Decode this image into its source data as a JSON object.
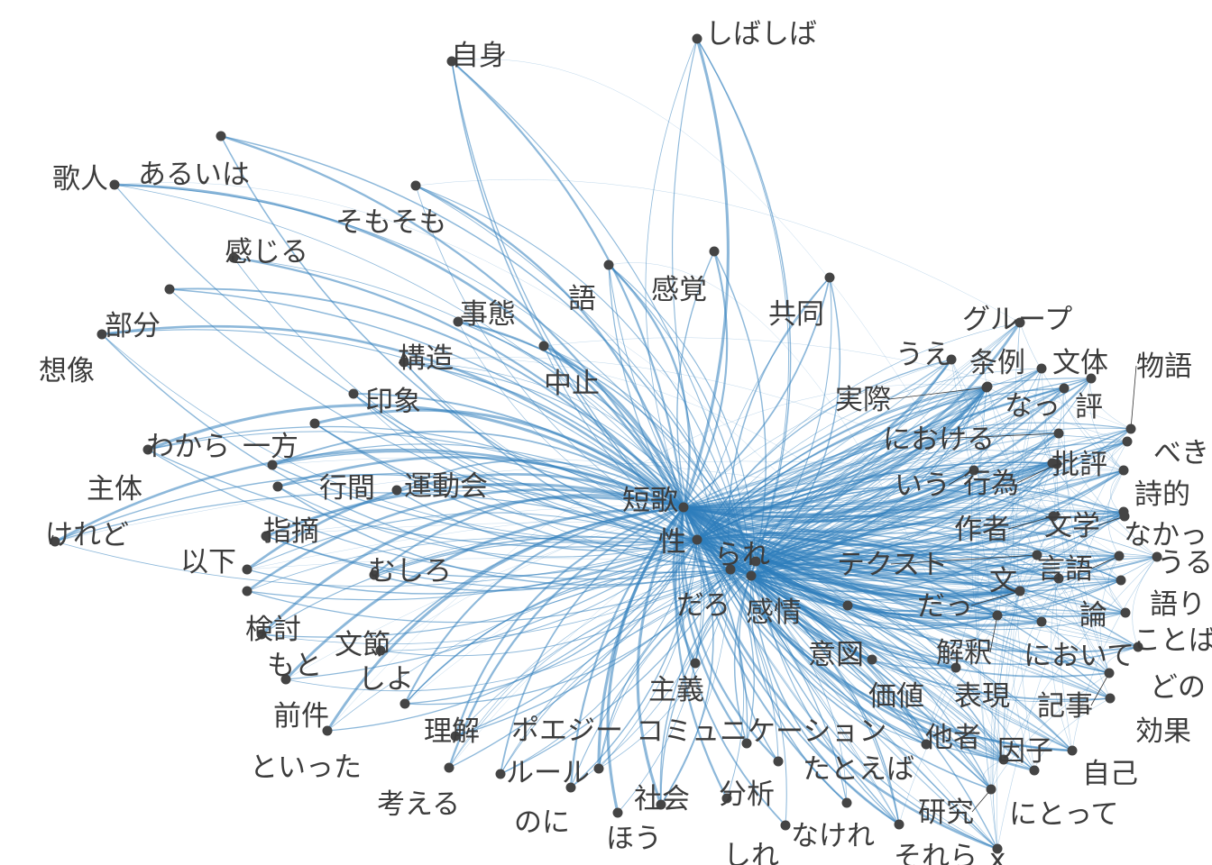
{
  "graph": {
    "edge_color": "#2f7ebc",
    "node_color": "#444444",
    "label_color": "#3c3c3c",
    "hubs": [
      "短歌",
      "性",
      "られ",
      "だろ",
      "感情"
    ],
    "nodes": [
      {
        "id": "しばしば",
        "label": "しばしば"
      },
      {
        "id": "自身",
        "label": "自身"
      },
      {
        "id": "歌人",
        "label": "歌人"
      },
      {
        "id": "あるいは",
        "label": "あるいは"
      },
      {
        "id": "そもそも",
        "label": "そもそも"
      },
      {
        "id": "感じる",
        "label": "感じる"
      },
      {
        "id": "語",
        "label": "語"
      },
      {
        "id": "感覚",
        "label": "感覚"
      },
      {
        "id": "共同",
        "label": "共同"
      },
      {
        "id": "グループ",
        "label": "グループ"
      },
      {
        "id": "部分",
        "label": "部分"
      },
      {
        "id": "事態",
        "label": "事態"
      },
      {
        "id": "想像",
        "label": "想像"
      },
      {
        "id": "構造",
        "label": "構造"
      },
      {
        "id": "中止",
        "label": "中止"
      },
      {
        "id": "うえ",
        "label": "うえ"
      },
      {
        "id": "条例",
        "label": "条例"
      },
      {
        "id": "文体",
        "label": "文体"
      },
      {
        "id": "物語",
        "label": "物語"
      },
      {
        "id": "実際",
        "label": "実際"
      },
      {
        "id": "なっ",
        "label": "なっ"
      },
      {
        "id": "評",
        "label": "評"
      },
      {
        "id": "印象",
        "label": "印象"
      },
      {
        "id": "における",
        "label": "における"
      },
      {
        "id": "べき",
        "label": "べき"
      },
      {
        "id": "わから",
        "label": "わから"
      },
      {
        "id": "一方",
        "label": "一方"
      },
      {
        "id": "批評",
        "label": "批評"
      },
      {
        "id": "主体",
        "label": "主体"
      },
      {
        "id": "行間",
        "label": "行間"
      },
      {
        "id": "運動会",
        "label": "運動会"
      },
      {
        "id": "いう",
        "label": "いう"
      },
      {
        "id": "行為",
        "label": "行為"
      },
      {
        "id": "詩的",
        "label": "詩的"
      },
      {
        "id": "短歌",
        "label": "短歌"
      },
      {
        "id": "けれど",
        "label": "けれど"
      },
      {
        "id": "指摘",
        "label": "指摘"
      },
      {
        "id": "作者",
        "label": "作者"
      },
      {
        "id": "文学",
        "label": "文学"
      },
      {
        "id": "なかっ",
        "label": "なかっ"
      },
      {
        "id": "性",
        "label": "性"
      },
      {
        "id": "られ",
        "label": "られ"
      },
      {
        "id": "以下",
        "label": "以下"
      },
      {
        "id": "テクスト",
        "label": "テクスト"
      },
      {
        "id": "うる",
        "label": "うる"
      },
      {
        "id": "むしろ",
        "label": "むしろ"
      },
      {
        "id": "言語",
        "label": "言語"
      },
      {
        "id": "文",
        "label": "文"
      },
      {
        "id": "だっ",
        "label": "だっ"
      },
      {
        "id": "語り",
        "label": "語り"
      },
      {
        "id": "だろ",
        "label": "だろ"
      },
      {
        "id": "感情",
        "label": "感情"
      },
      {
        "id": "論",
        "label": "論"
      },
      {
        "id": "検討",
        "label": "検討"
      },
      {
        "id": "ことば",
        "label": "ことば"
      },
      {
        "id": "文節",
        "label": "文節"
      },
      {
        "id": "意図",
        "label": "意図"
      },
      {
        "id": "解釈",
        "label": "解釈"
      },
      {
        "id": "において",
        "label": "において"
      },
      {
        "id": "もと",
        "label": "もと"
      },
      {
        "id": "しよ",
        "label": "しよ"
      },
      {
        "id": "どの",
        "label": "どの"
      },
      {
        "id": "主義",
        "label": "主義"
      },
      {
        "id": "価値",
        "label": "価値"
      },
      {
        "id": "表現",
        "label": "表現"
      },
      {
        "id": "前件",
        "label": "前件"
      },
      {
        "id": "記事",
        "label": "記事"
      },
      {
        "id": "理解",
        "label": "理解"
      },
      {
        "id": "ポエジー",
        "label": "ポエジー"
      },
      {
        "id": "コミュニケーション",
        "label": "コミュニケーション"
      },
      {
        "id": "効果",
        "label": "効果"
      },
      {
        "id": "他者",
        "label": "他者"
      },
      {
        "id": "因子",
        "label": "因子"
      },
      {
        "id": "といった",
        "label": "といった"
      },
      {
        "id": "ルール",
        "label": "ルール"
      },
      {
        "id": "たとえば",
        "label": "たとえば"
      },
      {
        "id": "自己",
        "label": "自己"
      },
      {
        "id": "考える",
        "label": "考える"
      },
      {
        "id": "社会",
        "label": "社会"
      },
      {
        "id": "分析",
        "label": "分析"
      },
      {
        "id": "のに",
        "label": "のに"
      },
      {
        "id": "研究",
        "label": "研究"
      },
      {
        "id": "にとって",
        "label": "にとって"
      },
      {
        "id": "なけれ",
        "label": "なけれ"
      },
      {
        "id": "ほう",
        "label": "ほう"
      },
      {
        "id": "それら",
        "label": "それら"
      },
      {
        "id": "しれ",
        "label": "しれ"
      },
      {
        "id": "x",
        "label": "x"
      }
    ]
  }
}
